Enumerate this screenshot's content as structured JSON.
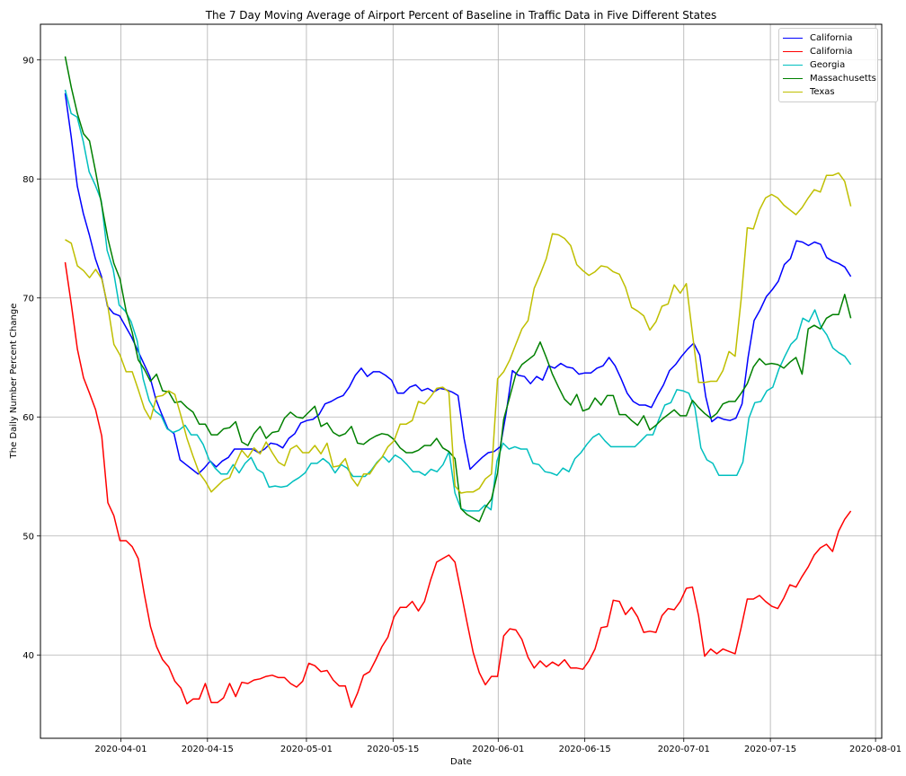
{
  "chart_data": {
    "type": "line",
    "title": "The 7 Day Moving Average of Airport Percent of Baseline in Traffic Data in Five Different States",
    "xlabel": "Date",
    "ylabel": "The Daily Number Percent Change",
    "xlim": [
      "2020-03-19",
      "2020-08-02"
    ],
    "ylim": [
      33,
      93
    ],
    "x_ticks": [
      "2020-04-01",
      "2020-04-15",
      "2020-05-01",
      "2020-05-15",
      "2020-06-01",
      "2020-06-15",
      "2020-07-01",
      "2020-07-15",
      "2020-08-01"
    ],
    "y_ticks": [
      40,
      50,
      60,
      70,
      80,
      90
    ],
    "grid": true,
    "legend_position": "top-right",
    "x_start": "2020-03-23",
    "x_end": "2020-07-28",
    "series": [
      {
        "name": "California",
        "color": "#0000ff",
        "values": [
          87.2,
          83.5,
          79.4,
          77.1,
          75.3,
          73.3,
          71.8,
          69.3,
          68.7,
          68.5,
          67.6,
          66.7,
          65.6,
          64.5,
          63.4,
          61.5,
          60.2,
          59.0,
          58.6,
          56.4,
          56.0,
          55.6,
          55.2,
          55.7,
          56.3,
          55.8,
          56.3,
          56.6,
          57.3,
          57.3,
          57.3,
          57.3,
          57.0,
          57.3,
          57.8,
          57.7,
          57.4,
          58.2,
          58.6,
          59.5,
          59.7,
          59.8,
          60.2,
          61.1,
          61.3,
          61.6,
          61.8,
          62.5,
          63.5,
          64.1,
          63.4,
          63.8,
          63.8,
          63.5,
          63.1,
          62.0,
          62.0,
          62.5,
          62.7,
          62.2,
          62.4,
          62.1,
          62.4,
          62.3,
          62.1,
          61.8,
          58.2,
          55.6,
          56.1,
          56.6,
          57.0,
          57.1,
          57.5,
          60.4,
          63.9,
          63.5,
          63.4,
          62.8,
          63.4,
          63.1,
          64.3,
          64.1,
          64.5,
          64.2,
          64.1,
          63.6,
          63.7,
          63.7,
          64.1,
          64.3,
          65.0,
          64.3,
          63.2,
          62.0,
          61.3,
          61.0,
          61.0,
          60.8,
          61.8,
          62.7,
          63.9,
          64.4,
          65.1,
          65.7,
          66.2,
          65.2,
          61.7,
          59.6,
          60.0,
          59.8,
          59.7,
          59.9,
          61.1,
          65.0,
          68.1,
          69.0,
          70.1,
          70.7,
          71.4,
          72.8,
          73.3,
          74.8,
          74.7,
          74.4,
          74.7,
          74.5,
          73.4,
          73.1,
          72.9,
          72.6,
          71.8
        ]
      },
      {
        "name": "California",
        "color": "#ff0000",
        "values": [
          73.0,
          69.5,
          65.7,
          63.3,
          62.0,
          60.6,
          58.4,
          52.8,
          51.7,
          49.6,
          49.6,
          49.1,
          48.1,
          45.1,
          42.4,
          40.7,
          39.6,
          39.0,
          37.8,
          37.2,
          35.9,
          36.3,
          36.3,
          37.6,
          36.0,
          36.0,
          36.4,
          37.6,
          36.5,
          37.7,
          37.6,
          37.9,
          38.0,
          38.2,
          38.3,
          38.1,
          38.1,
          37.6,
          37.3,
          37.8,
          39.3,
          39.1,
          38.6,
          38.7,
          37.9,
          37.4,
          37.4,
          35.6,
          36.8,
          38.3,
          38.6,
          39.6,
          40.7,
          41.5,
          43.2,
          44.0,
          44.0,
          44.5,
          43.7,
          44.5,
          46.3,
          47.8,
          48.1,
          48.4,
          47.8,
          45.3,
          42.7,
          40.2,
          38.5,
          37.5,
          38.2,
          38.2,
          41.6,
          42.2,
          42.1,
          41.3,
          39.8,
          38.9,
          39.5,
          39.0,
          39.4,
          39.1,
          39.6,
          38.9,
          38.9,
          38.8,
          39.5,
          40.5,
          42.3,
          42.4,
          44.6,
          44.5,
          43.4,
          44.0,
          43.2,
          41.9,
          42.0,
          41.9,
          43.3,
          43.9,
          43.8,
          44.5,
          45.6,
          45.7,
          43.3,
          39.9,
          40.5,
          40.1,
          40.5,
          40.3,
          40.1,
          42.3,
          44.7,
          44.7,
          45.0,
          44.5,
          44.1,
          43.9,
          44.8,
          45.9,
          45.7,
          46.6,
          47.4,
          48.4,
          49.0,
          49.3,
          48.7,
          50.4,
          51.4,
          52.1
        ]
      },
      {
        "name": "Georgia",
        "color": "#00bfbf",
        "values": [
          87.5,
          85.5,
          85.2,
          83.2,
          80.6,
          79.5,
          78.2,
          74.0,
          72.4,
          69.4,
          68.9,
          68.0,
          66.4,
          63.2,
          61.4,
          60.5,
          60.1,
          59.0,
          58.7,
          58.9,
          59.3,
          58.5,
          58.5,
          57.7,
          56.4,
          55.7,
          55.2,
          55.2,
          56.0,
          55.3,
          56.1,
          56.6,
          55.6,
          55.3,
          54.1,
          54.2,
          54.1,
          54.2,
          54.6,
          54.9,
          55.3,
          56.1,
          56.1,
          56.5,
          56.1,
          55.3,
          56.0,
          55.7,
          55.0,
          55.0,
          55.0,
          55.5,
          56.2,
          56.7,
          56.2,
          56.8,
          56.5,
          56.0,
          55.4,
          55.4,
          55.1,
          55.6,
          55.4,
          56.0,
          57.1,
          53.6,
          52.3,
          52.1,
          52.1,
          52.1,
          52.6,
          52.2,
          56.3,
          57.8,
          57.3,
          57.5,
          57.3,
          57.3,
          56.1,
          56.0,
          55.4,
          55.3,
          55.1,
          55.7,
          55.4,
          56.5,
          57.0,
          57.7,
          58.3,
          58.6,
          58.0,
          57.5,
          57.5,
          57.5,
          57.5,
          57.5,
          58.0,
          58.5,
          58.5,
          59.8,
          61.0,
          61.2,
          62.3,
          62.2,
          62.0,
          60.8,
          57.4,
          56.4,
          56.1,
          55.1,
          55.1,
          55.1,
          55.1,
          56.2,
          59.9,
          61.2,
          61.3,
          62.2,
          62.5,
          64.0,
          65.1,
          66.1,
          66.6,
          68.3,
          68.0,
          69.0,
          67.6,
          66.9,
          65.8,
          65.4,
          65.1,
          64.4
        ]
      },
      {
        "name": "Massachusetts",
        "color": "#008000",
        "values": [
          90.3,
          87.7,
          85.5,
          83.8,
          83.2,
          80.6,
          77.8,
          75.0,
          72.9,
          71.6,
          68.9,
          67.1,
          64.8,
          64.0,
          63.0,
          63.6,
          62.2,
          62.1,
          61.2,
          61.3,
          60.8,
          60.4,
          59.4,
          59.4,
          58.5,
          58.5,
          59.0,
          59.1,
          59.6,
          57.9,
          57.6,
          58.6,
          59.2,
          58.2,
          58.7,
          58.8,
          59.9,
          60.4,
          60.0,
          59.9,
          60.4,
          60.9,
          59.2,
          59.5,
          58.7,
          58.4,
          58.6,
          59.2,
          57.8,
          57.7,
          58.1,
          58.4,
          58.6,
          58.5,
          58.1,
          57.4,
          57.0,
          57.0,
          57.2,
          57.6,
          57.6,
          58.2,
          57.4,
          57.1,
          56.5,
          52.3,
          51.8,
          51.5,
          51.2,
          52.4,
          53.1,
          55.3,
          59.8,
          61.7,
          63.6,
          64.4,
          64.8,
          65.2,
          66.3,
          65.0,
          63.6,
          62.5,
          61.5,
          61.0,
          61.9,
          60.5,
          60.7,
          61.6,
          61.0,
          61.8,
          61.8,
          60.2,
          60.2,
          59.7,
          59.3,
          60.1,
          58.9,
          59.3,
          59.8,
          60.2,
          60.6,
          60.1,
          60.1,
          61.4,
          60.8,
          60.3,
          59.9,
          60.3,
          61.1,
          61.3,
          61.3,
          62.0,
          62.8,
          64.2,
          64.9,
          64.4,
          64.5,
          64.4,
          64.1,
          64.6,
          65.0,
          63.6,
          67.4,
          67.7,
          67.4,
          68.3,
          68.6,
          68.6,
          70.3,
          68.3
        ]
      },
      {
        "name": "Texas",
        "color": "#bfbf00",
        "values": [
          74.9,
          74.6,
          72.7,
          72.3,
          71.7,
          72.4,
          71.6,
          69.3,
          66.1,
          65.2,
          63.8,
          63.8,
          62.3,
          60.7,
          59.8,
          61.7,
          61.8,
          62.2,
          61.9,
          60.1,
          58.2,
          56.7,
          55.3,
          54.6,
          53.7,
          54.2,
          54.7,
          54.9,
          56.1,
          57.2,
          56.6,
          57.4,
          56.9,
          57.9,
          57.0,
          56.2,
          55.9,
          57.3,
          57.6,
          57.0,
          57.0,
          57.6,
          56.9,
          57.8,
          55.8,
          55.9,
          56.5,
          54.9,
          54.2,
          55.2,
          55.2,
          56.0,
          56.6,
          57.5,
          58.0,
          59.4,
          59.4,
          59.7,
          61.3,
          61.1,
          61.7,
          62.4,
          62.5,
          62.1,
          54.2,
          53.6,
          53.7,
          53.7,
          54.0,
          54.8,
          55.2,
          63.2,
          63.8,
          64.8,
          66.1,
          67.4,
          68.1,
          70.8,
          72.0,
          73.3,
          75.4,
          75.3,
          75.0,
          74.4,
          72.8,
          72.3,
          71.9,
          72.2,
          72.7,
          72.6,
          72.2,
          72.0,
          70.9,
          69.2,
          68.9,
          68.5,
          67.3,
          68.0,
          69.3,
          69.5,
          71.1,
          70.4,
          71.2,
          67.0,
          62.9,
          62.9,
          63.0,
          63.0,
          63.9,
          65.5,
          65.1,
          69.9,
          75.9,
          75.8,
          77.4,
          78.4,
          78.7,
          78.4,
          77.8,
          77.4,
          77.0,
          77.6,
          78.4,
          79.1,
          78.9,
          80.3,
          80.3,
          80.5,
          79.8,
          77.7
        ]
      }
    ]
  }
}
